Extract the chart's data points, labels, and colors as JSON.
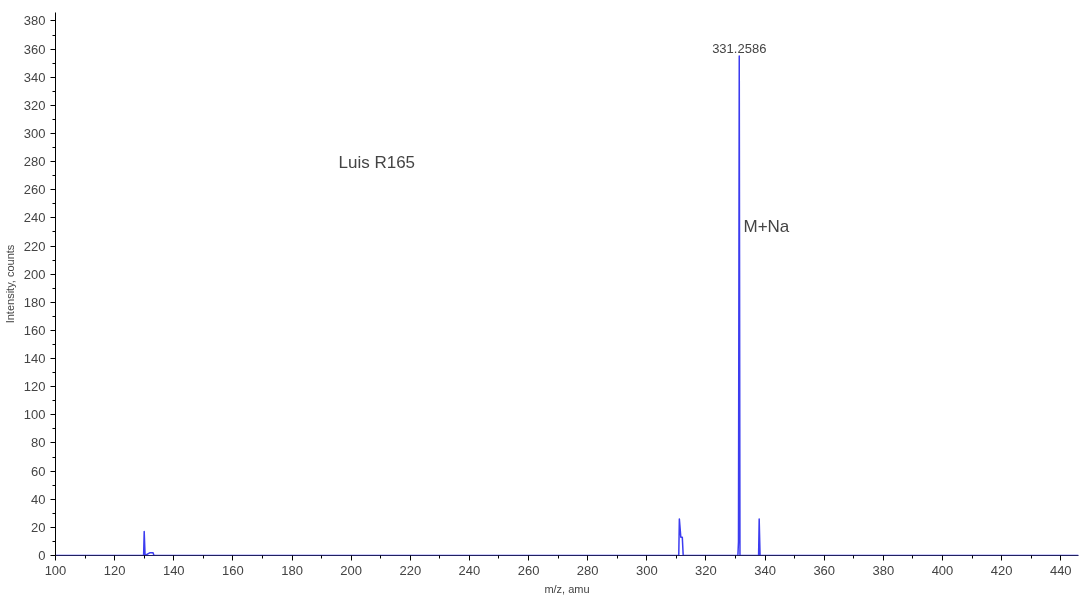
{
  "chart_data": {
    "type": "line",
    "xlabel": "m/z, amu",
    "ylabel": "Intensity, counts",
    "series": [
      {
        "color": "#3c3cf0",
        "x": [
          100,
          129.8,
          130,
          130.3,
          132,
          133,
          133.3,
          310.8,
          311,
          311.5,
          312,
          312.3,
          330.8,
          331,
          331.2586,
          331.5,
          337.8,
          338,
          338.3,
          446
        ],
        "values": [
          0,
          0,
          17,
          0,
          2,
          2,
          0,
          0,
          26,
          13,
          13,
          0,
          0,
          10,
          355,
          0,
          0,
          26,
          0,
          0
        ]
      }
    ],
    "annotations": [
      {
        "text": "331.2586",
        "x": 331.2586,
        "y": 355
      },
      "Luis R165",
      "M+Na"
    ],
    "xlim": [
      100,
      446
    ],
    "ylim": [
      0,
      386
    ],
    "xticks": [
      100,
      {
        "value": 110,
        "label": null
      },
      120,
      {
        "value": 130,
        "label": null
      },
      140,
      {
        "value": 150,
        "label": null
      },
      160,
      {
        "value": 170,
        "label": null
      },
      180,
      {
        "value": 190,
        "label": null
      },
      200,
      {
        "value": 210,
        "label": null
      },
      220,
      {
        "value": 230,
        "label": null
      },
      240,
      {
        "value": 250,
        "label": null
      },
      260,
      {
        "value": 270,
        "label": null
      },
      280,
      {
        "value": 290,
        "label": null
      },
      300,
      {
        "value": 310,
        "label": null
      },
      320,
      {
        "value": 330,
        "label": null
      },
      340,
      {
        "value": 350,
        "label": null
      },
      360,
      {
        "value": 370,
        "label": null
      },
      380,
      {
        "value": 390,
        "label": null
      },
      400,
      {
        "value": 410,
        "label": null
      },
      420,
      {
        "value": 430,
        "label": null
      },
      440
    ],
    "yticks": [
      0,
      {
        "value": 10,
        "label": null
      },
      20,
      {
        "value": 30,
        "label": null
      },
      40,
      {
        "value": 50,
        "label": null
      },
      60,
      {
        "value": 70,
        "label": null
      },
      80,
      {
        "value": 90,
        "label": null
      },
      100,
      {
        "value": 110,
        "label": null
      },
      120,
      {
        "value": 130,
        "label": null
      },
      140,
      {
        "value": 150,
        "label": null
      },
      160,
      {
        "value": 170,
        "label": null
      },
      180,
      {
        "value": 190,
        "label": null
      },
      200,
      {
        "value": 210,
        "label": null
      },
      220,
      {
        "value": 230,
        "label": null
      },
      240,
      {
        "value": 250,
        "label": null
      },
      260,
      {
        "value": 270,
        "label": null
      },
      280,
      {
        "value": 290,
        "label": null
      },
      300,
      {
        "value": 310,
        "label": null
      },
      320,
      {
        "value": 330,
        "label": null
      },
      340,
      {
        "value": 350,
        "label": null
      },
      360,
      {
        "value": 370,
        "label": null
      },
      380
    ],
    "grid": false,
    "marker": "none"
  }
}
